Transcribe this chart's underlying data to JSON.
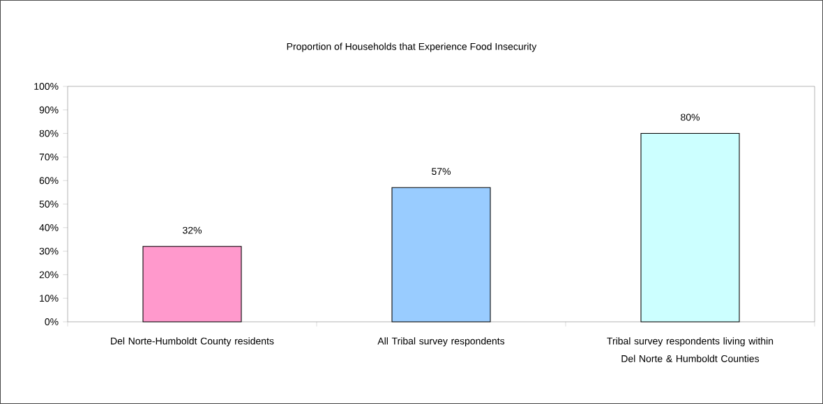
{
  "chart_data": {
    "type": "bar",
    "title": "Proportion of Households that Experience Food Insecurity",
    "categories": [
      "Del Norte-Humboldt County residents",
      "All Tribal survey respondents",
      "Tribal survey respondents living within Del Norte & Humboldt Counties"
    ],
    "values": [
      32,
      57,
      80
    ],
    "colors": [
      "#ff99cc",
      "#99ccff",
      "#ccffff"
    ],
    "value_labels": [
      "32%",
      "57%",
      "80%"
    ],
    "ylim": [
      0,
      100
    ],
    "yticks": [
      {
        "value": 0,
        "label": "0%"
      },
      {
        "value": 10,
        "label": "10%"
      },
      {
        "value": 20,
        "label": "20%"
      },
      {
        "value": 30,
        "label": "30%"
      },
      {
        "value": 40,
        "label": "40%"
      },
      {
        "value": 50,
        "label": "50%"
      },
      {
        "value": 60,
        "label": "60%"
      },
      {
        "value": 70,
        "label": "70%"
      },
      {
        "value": 80,
        "label": "80%"
      },
      {
        "value": 90,
        "label": "90%"
      },
      {
        "value": 100,
        "label": "100%"
      }
    ],
    "grid": false
  }
}
